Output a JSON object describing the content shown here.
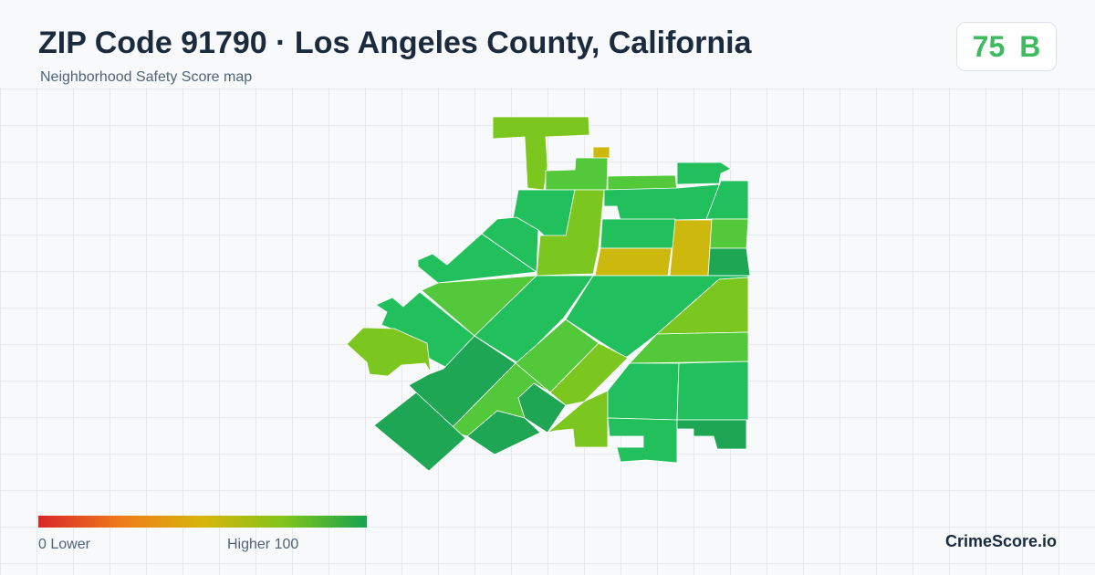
{
  "header": {
    "title": "ZIP Code 91790 · Los Angeles County, California",
    "subtitle": "Neighborhood Safety Score map"
  },
  "score": {
    "value": "75",
    "grade": "B",
    "color": "#3dbb5e"
  },
  "legend": {
    "low_label": "0  Lower",
    "high_label": "Higher  100",
    "colors": [
      "#d9262a",
      "#ef7a1c",
      "#d8b50a",
      "#80c41c",
      "#17a34f"
    ]
  },
  "brand": "CrimeScore.io",
  "map": {
    "colors": {
      "dark_green": "#1ea655",
      "green": "#22c05c",
      "light_green": "#52c83a",
      "yellow_green": "#7cc71f",
      "mustard": "#cdb90d"
    }
  }
}
